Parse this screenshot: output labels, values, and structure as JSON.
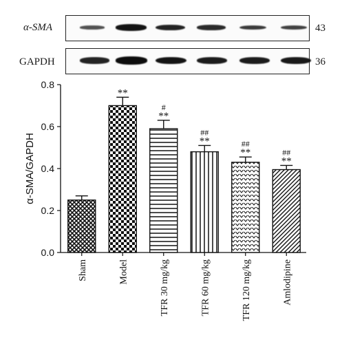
{
  "blots": [
    {
      "label": "α-SMA",
      "kda": "43",
      "band_intensity": [
        0.55,
        0.95,
        0.85,
        0.8,
        0.7,
        0.65
      ]
    },
    {
      "label": "GAPDH",
      "kda": "36",
      "band_intensity": [
        0.85,
        1.0,
        0.95,
        0.9,
        0.9,
        0.92
      ]
    }
  ],
  "chart_data": {
    "type": "bar",
    "title": "",
    "xlabel": "",
    "ylabel": "α-SMA/GAPDH",
    "ylim": [
      0,
      0.8
    ],
    "yticks": [
      "0.0",
      "0.2",
      "0.4",
      "0.6",
      "0.8"
    ],
    "categories": [
      "Sham",
      "Model",
      "TFR 30 mg/kg",
      "TFR 60 mg/kg",
      "TFR 120 mg/kg",
      "Amlodipine"
    ],
    "values": [
      0.25,
      0.7,
      0.59,
      0.48,
      0.43,
      0.395
    ],
    "errors": [
      0.02,
      0.04,
      0.04,
      0.03,
      0.025,
      0.02
    ],
    "annotations": [
      {
        "hash": "",
        "star": ""
      },
      {
        "hash": "",
        "star": "**"
      },
      {
        "hash": "#",
        "star": "**"
      },
      {
        "hash": "##",
        "star": "**"
      },
      {
        "hash": "##",
        "star": "**"
      },
      {
        "hash": "##",
        "star": "**"
      }
    ],
    "patterns": [
      "crosshatch",
      "checker",
      "hstripes",
      "vstripes",
      "dots",
      "diagonal"
    ],
    "grid": false,
    "legend": "none"
  }
}
